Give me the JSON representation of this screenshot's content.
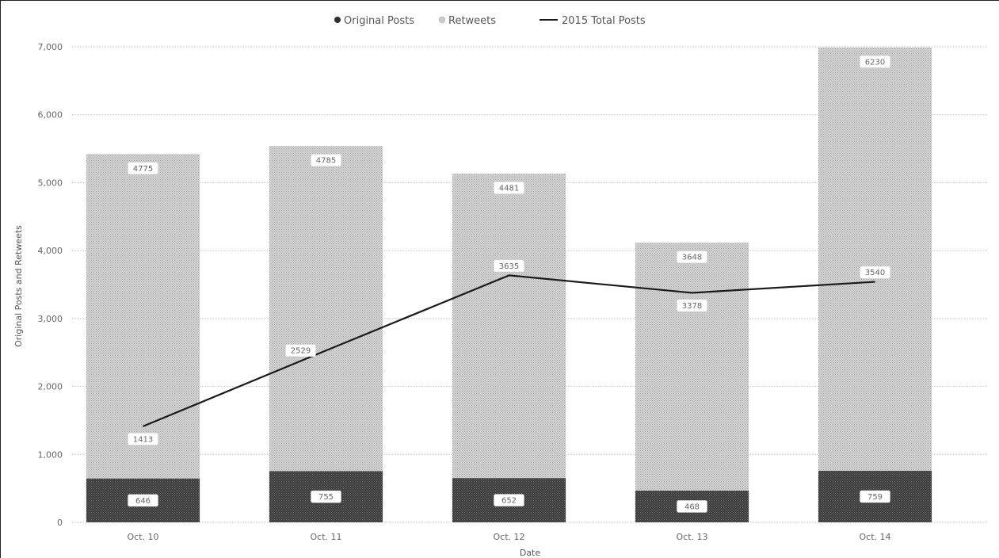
{
  "chart_data": {
    "type": "bar",
    "stacked": true,
    "categories": [
      "Oct. 10",
      "Oct. 11",
      "Oct. 12",
      "Oct. 13",
      "Oct. 14"
    ],
    "series": [
      {
        "name": "Original Posts",
        "kind": "bar",
        "values": [
          646,
          755,
          652,
          468,
          759
        ],
        "color": "#2e2e2e"
      },
      {
        "name": "Retweets",
        "kind": "bar",
        "values": [
          4775,
          4785,
          4481,
          3648,
          6230
        ],
        "color": "#c8c8c8"
      },
      {
        "name": "2015 Total Posts",
        "kind": "line",
        "values": [
          1413,
          2529,
          3635,
          3378,
          3540
        ],
        "color": "#1a1a1a"
      }
    ],
    "legend": {
      "position": "top-center",
      "items": [
        "Original Posts",
        "Retweets",
        "2015 Total Posts"
      ]
    },
    "ylabel": "Original Posts and Retweets",
    "xlabel": "Date",
    "ylim": [
      0,
      7000
    ],
    "yticks": [
      0,
      1000,
      2000,
      3000,
      4000,
      5000,
      6000,
      7000
    ],
    "ytick_labels": [
      "0",
      "1,000",
      "2,000",
      "3,000",
      "4,000",
      "5,000",
      "6,000",
      "7,000"
    ],
    "grid": true
  }
}
